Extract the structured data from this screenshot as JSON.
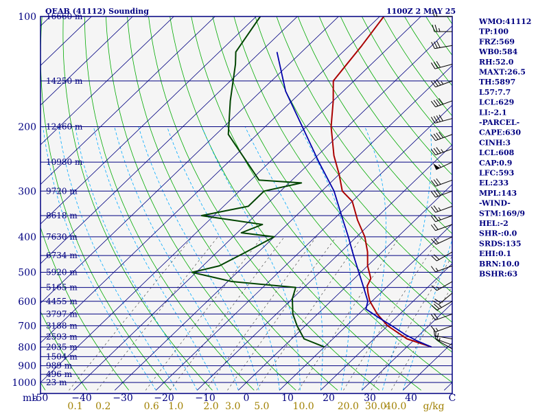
{
  "header": {
    "station": "OEAB (41112) Sounding",
    "valid": "1100Z  2 MAY 25"
  },
  "colors": {
    "plot_bg": "#f5f5f5",
    "frame": "#000080",
    "isotherm": "#000080",
    "dry_adiabat": "#00aa00",
    "moist_adiabat": "#00aaff",
    "mixing_ratio": "#333333",
    "temperature": "#aa0000",
    "dewpoint": "#004400",
    "parcel": "#0000aa",
    "label_text": "#000080",
    "mr_text": "#a08000"
  },
  "chart_data": {
    "type": "skew-t",
    "pressure_levels": [
      {
        "p": 100,
        "label": "100",
        "height": "16660 m"
      },
      {
        "p": 150,
        "label": "",
        "height": "14250 m"
      },
      {
        "p": 200,
        "label": "200",
        "height": "12460 m"
      },
      {
        "p": 250,
        "label": "",
        "height": "10980 m"
      },
      {
        "p": 300,
        "label": "300",
        "height": "9720 m"
      },
      {
        "p": 350,
        "label": "",
        "height": "8618 m"
      },
      {
        "p": 400,
        "label": "400",
        "height": "7630 m"
      },
      {
        "p": 450,
        "label": "",
        "height": "6734 m"
      },
      {
        "p": 500,
        "label": "500",
        "height": "5920 m"
      },
      {
        "p": 550,
        "label": "",
        "height": "5165 m"
      },
      {
        "p": 600,
        "label": "600",
        "height": "4455 m"
      },
      {
        "p": 650,
        "label": "",
        "height": "3797 m"
      },
      {
        "p": 700,
        "label": "700",
        "height": "3188 m"
      },
      {
        "p": 750,
        "label": "",
        "height": "2593 m"
      },
      {
        "p": 800,
        "label": "800",
        "height": "2035 m"
      },
      {
        "p": 850,
        "label": "",
        "height": "1504 m"
      },
      {
        "p": 900,
        "label": "900",
        "height": "989 m"
      },
      {
        "p": 950,
        "label": "",
        "height": "496 m"
      },
      {
        "p": 1000,
        "label": "1000",
        "height": "23 m"
      }
    ],
    "y_unit": "mb",
    "x_unit": "C",
    "temp_ticks": [
      -50,
      -40,
      -30,
      -20,
      -10,
      0,
      10,
      20,
      30,
      40
    ],
    "temp_tick_labels": [
      "-50",
      "−40",
      "−30",
      "−20",
      "−10",
      "0",
      "10",
      "20",
      "30",
      "40"
    ],
    "mixing_ratio_ticks": [
      {
        "w": 0.1,
        "label": "0.1"
      },
      {
        "w": 0.2,
        "label": "0.2"
      },
      {
        "w": 0.6,
        "label": "0.6"
      },
      {
        "w": 1.0,
        "label": "1.0"
      },
      {
        "w": 2.0,
        "label": "2.0"
      },
      {
        "w": 3.0,
        "label": "3.0"
      },
      {
        "w": 5.0,
        "label": "5.0"
      },
      {
        "w": 10.0,
        "label": "10.0"
      },
      {
        "w": 20.0,
        "label": "20.0"
      },
      {
        "w": 30.0,
        "label": "30.0"
      },
      {
        "w": 40.0,
        "label": "40.0"
      }
    ],
    "mixing_ratio_unit": "g/kg",
    "ylim": [
      1000,
      100
    ],
    "xlim_at_1000mb": [
      -50,
      50
    ],
    "series": [
      {
        "key": "temperature",
        "values": [
          [
            800,
            36
          ],
          [
            760,
            28
          ],
          [
            700,
            20
          ],
          [
            650,
            14.5
          ],
          [
            600,
            9.5
          ],
          [
            570,
            7
          ],
          [
            545,
            5
          ],
          [
            520,
            4
          ],
          [
            480,
            0
          ],
          [
            440,
            -3.5
          ],
          [
            400,
            -8
          ],
          [
            360,
            -14
          ],
          [
            320,
            -20
          ],
          [
            300,
            -25
          ],
          [
            270,
            -30
          ],
          [
            240,
            -36
          ],
          [
            200,
            -44
          ],
          [
            170,
            -50
          ],
          [
            150,
            -55
          ],
          [
            120,
            -57
          ],
          [
            100,
            -59
          ]
        ]
      },
      {
        "key": "dewpoint",
        "values": [
          [
            800,
            10
          ],
          [
            760,
            3
          ],
          [
            700,
            -2
          ],
          [
            650,
            -6
          ],
          [
            590,
            -10
          ],
          [
            550,
            -12
          ],
          [
            530,
            -29
          ],
          [
            500,
            -41
          ],
          [
            480,
            -36
          ],
          [
            440,
            -33
          ],
          [
            400,
            -30
          ],
          [
            390,
            -39
          ],
          [
            370,
            -36
          ],
          [
            350,
            -53
          ],
          [
            330,
            -44
          ],
          [
            300,
            -44
          ],
          [
            285,
            -37
          ],
          [
            280,
            -48
          ],
          [
            210,
            -67
          ],
          [
            170,
            -75
          ],
          [
            135,
            -83
          ],
          [
            125,
            -86
          ],
          [
            100,
            -89
          ]
        ]
      },
      {
        "key": "parcel",
        "values": [
          [
            800,
            36
          ],
          [
            770,
            31
          ],
          [
            740,
            26.5
          ],
          [
            700,
            21
          ],
          [
            660,
            15
          ],
          [
            630,
            10.5
          ],
          [
            600,
            9
          ],
          [
            550,
            4.5
          ],
          [
            500,
            -0.5
          ],
          [
            450,
            -6
          ],
          [
            400,
            -12
          ],
          [
            350,
            -19
          ],
          [
            300,
            -27
          ],
          [
            250,
            -38
          ],
          [
            200,
            -51
          ],
          [
            160,
            -64
          ],
          [
            125,
            -76
          ]
        ]
      }
    ],
    "wind_barbs": [
      {
        "p": 810,
        "dir": 300,
        "spd": 15
      },
      {
        "p": 790,
        "dir": 290,
        "spd": 10
      },
      {
        "p": 760,
        "dir": 280,
        "spd": 10
      },
      {
        "p": 700,
        "dir": 250,
        "spd": 15
      },
      {
        "p": 650,
        "dir": 250,
        "spd": 20
      },
      {
        "p": 600,
        "dir": 240,
        "spd": 25
      },
      {
        "p": 570,
        "dir": 230,
        "spd": 20
      },
      {
        "p": 530,
        "dir": 240,
        "spd": 15
      },
      {
        "p": 480,
        "dir": 250,
        "spd": 15
      },
      {
        "p": 440,
        "dir": 240,
        "spd": 20
      },
      {
        "p": 400,
        "dir": 245,
        "spd": 20
      },
      {
        "p": 370,
        "dir": 250,
        "spd": 20
      },
      {
        "p": 350,
        "dir": 250,
        "spd": 25
      },
      {
        "p": 330,
        "dir": 250,
        "spd": 25
      },
      {
        "p": 300,
        "dir": 250,
        "spd": 30
      },
      {
        "p": 280,
        "dir": 250,
        "spd": 30
      },
      {
        "p": 250,
        "dir": 245,
        "spd": 55
      },
      {
        "p": 230,
        "dir": 250,
        "spd": 35
      },
      {
        "p": 210,
        "dir": 250,
        "spd": 40
      },
      {
        "p": 190,
        "dir": 255,
        "spd": 40
      },
      {
        "p": 170,
        "dir": 250,
        "spd": 40
      },
      {
        "p": 150,
        "dir": 250,
        "spd": 35
      },
      {
        "p": 135,
        "dir": 255,
        "spd": 30
      },
      {
        "p": 120,
        "dir": 260,
        "spd": 30
      },
      {
        "p": 110,
        "dir": 270,
        "spd": 25
      },
      {
        "p": 100,
        "dir": 270,
        "spd": 20
      }
    ]
  },
  "stats": [
    "WMO:41112",
    "TP:100",
    "FRZ:569",
    "WB0:584",
    "RH:52.0",
    "MAXT:26.5",
    "TH:5897",
    "L57:7.7",
    "LCL:629",
    "LI:-2.1",
    "-PARCEL-",
    "CAPE:630",
    "CINH:3",
    "LCL:608",
    "CAP:0.9",
    "LFC:593",
    "EL:233",
    "MPL:143",
    "-WIND-",
    "STM:169/9",
    "HEL:-2",
    "SHR-:0.0",
    "SRDS:135",
    "EHI:0.1",
    "BRN:10.0",
    "BSHR:63"
  ]
}
